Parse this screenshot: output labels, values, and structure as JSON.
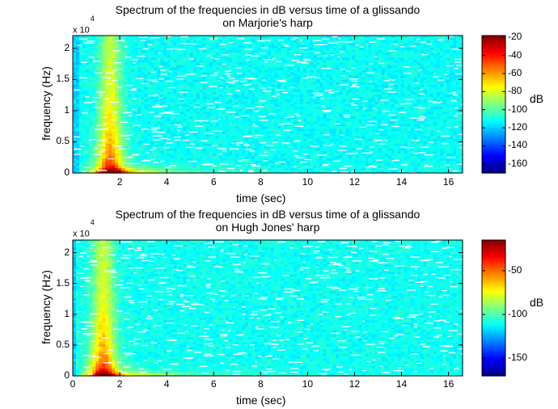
{
  "chart_data": [
    {
      "type": "heatmap",
      "title_line1": "Spectrum of the frequencies in dB versus time of a glissando",
      "title_line2": "on Marjorie's harp",
      "xlabel": "time (sec)",
      "ylabel": "frequency (Hz)",
      "y_exponent": "x 10",
      "y_exponent_power": "4",
      "xlim": [
        0,
        16.6
      ],
      "ylim": [
        0,
        22050
      ],
      "x_ticks": [
        "2",
        "4",
        "6",
        "8",
        "10",
        "12",
        "14",
        "16"
      ],
      "y_ticks": [
        "0",
        "0.5",
        "1",
        "1.5",
        "2"
      ],
      "colorbar_label": "dB",
      "colorbar_ticks": [
        "-20",
        "-40",
        "-60",
        "-80",
        "-100",
        "-120",
        "-140",
        "-160"
      ],
      "colorbar_range": [
        -170,
        -18
      ],
      "onset_time": 0.3,
      "peak_time": 1.6,
      "peak_db": -20,
      "background_db": -112,
      "colormap": "jet"
    },
    {
      "type": "heatmap",
      "title_line1": "Spectrum of the frequencies in dB versus time of a glissando",
      "title_line2": "on Hugh Jones' harp",
      "xlabel": "time (sec)",
      "ylabel": "frequency (Hz)",
      "y_exponent": "x 10",
      "y_exponent_power": "4",
      "xlim": [
        0,
        16.6
      ],
      "ylim": [
        0,
        22050
      ],
      "x_ticks": [
        "0",
        "2",
        "4",
        "6",
        "8",
        "10",
        "12",
        "14",
        "16"
      ],
      "y_ticks": [
        "0",
        "0.5",
        "1",
        "1.5",
        "2"
      ],
      "colorbar_label": "dB",
      "colorbar_ticks": [
        "-50",
        "-100",
        "-150"
      ],
      "colorbar_range": [
        -170,
        -15
      ],
      "onset_time": 0.2,
      "peak_time": 1.3,
      "peak_db": -15,
      "background_db": -110,
      "colormap": "jet"
    }
  ]
}
